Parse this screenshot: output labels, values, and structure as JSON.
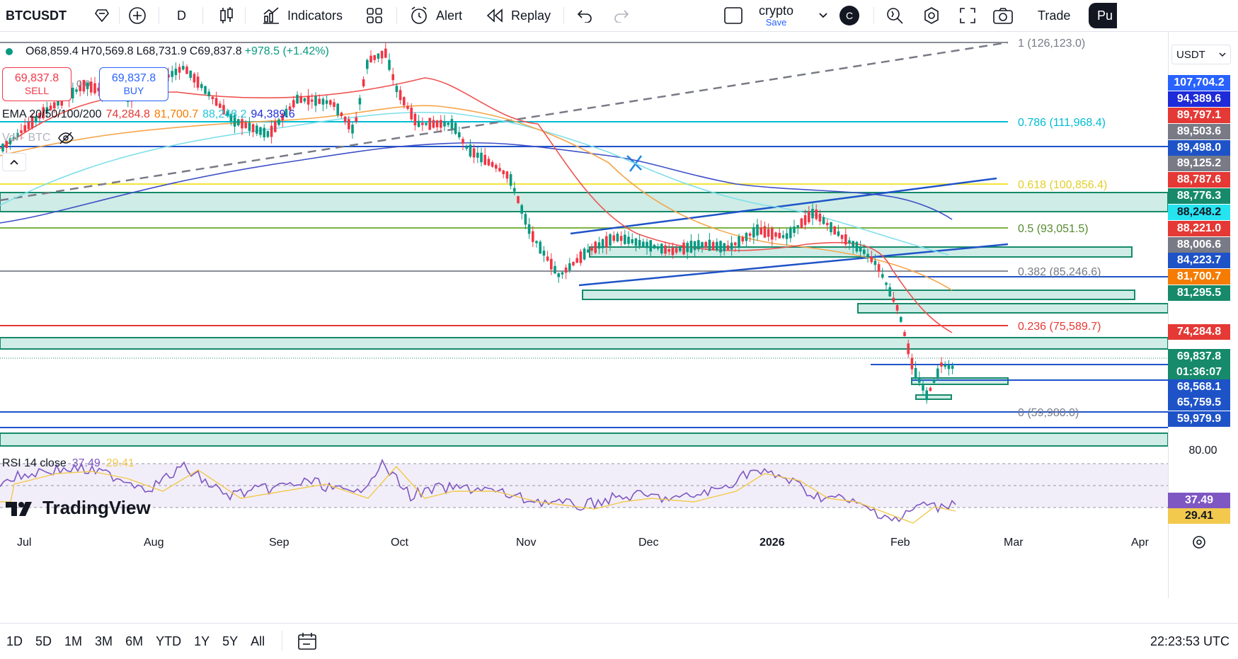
{
  "toolbar": {
    "symbol": "BTCUSDT",
    "interval": "D",
    "indicators_label": "Indicators",
    "alert_label": "Alert",
    "replay_label": "Replay",
    "layout_name": "crypto",
    "layout_sub": "Save",
    "avatar_letter": "C",
    "trade_label": "Trade",
    "publish_label": "Pu"
  },
  "ohlc": {
    "o": "O68,859.4",
    "h": "H70,569.8",
    "l": "L68,731.9",
    "c": "C69,837.8",
    "chg": "+978.5 (+1.42%)"
  },
  "trade_buttons": {
    "sell_price": "69,837.8",
    "sell_label": "SELL",
    "spread": "0.0",
    "buy_price": "69,837.8",
    "buy_label": "BUY"
  },
  "ema_legend": {
    "label": "EMA 20/50/100/200",
    "v1": "74,284.8",
    "v2": "81,700.7",
    "v3": "88,248.2",
    "v4": "94,389.6"
  },
  "vol_legend": "Vol · BTC",
  "rsi_legend": {
    "label": "RSI 14 close",
    "v1": "37.49",
    "v2": "29.41"
  },
  "currency": "USDT",
  "fib_labels": [
    "1 (126,123.0)",
    "0.786 (111,968.4)",
    "0.618 (100,856.4)",
    "0.5 (93,051.5)",
    "0.382 (85,246.6)",
    "0.236 (75,589.7)",
    "0 (59,980.0)"
  ],
  "price_labels": [
    {
      "text": "107,704.2",
      "bg": "#2962ff"
    },
    {
      "text": "94,389.6",
      "bg": "#1e2bd9"
    },
    {
      "text": "89,797.1",
      "bg": "#e53935"
    },
    {
      "text": "89,503.6",
      "bg": "#787b86"
    },
    {
      "text": "89,498.0",
      "bg": "#1e53c8"
    },
    {
      "text": "89,125.2",
      "bg": "#787b86"
    },
    {
      "text": "88,787.6",
      "bg": "#e53935"
    },
    {
      "text": "88,776.3",
      "bg": "#168a6a"
    },
    {
      "text": "88,248.2",
      "bg": "#26e3f0"
    },
    {
      "text": "88,221.0",
      "bg": "#e53935"
    },
    {
      "text": "88,006.6",
      "bg": "#787b86"
    },
    {
      "text": "84,223.7",
      "bg": "#1e53c8"
    },
    {
      "text": "81,700.7",
      "bg": "#f57c00"
    },
    {
      "text": "81,295.5",
      "bg": "#168a6a"
    },
    {
      "text": "74,284.8",
      "bg": "#e53935"
    },
    {
      "text": "69,837.8",
      "bg": "#168a6a"
    },
    {
      "text": "01:36:07",
      "bg": "#168a6a"
    },
    {
      "text": "68,568.1",
      "bg": "#1e53c8"
    },
    {
      "text": "65,759.5",
      "bg": "#1e53c8"
    },
    {
      "text": "59,979.9",
      "bg": "#1e53c8"
    }
  ],
  "rsi_axis": {
    "top": "80.00",
    "v1": "37.49",
    "v2": "29.41"
  },
  "time_labels": [
    "Jul",
    "Aug",
    "Sep",
    "Oct",
    "Nov",
    "Dec",
    "2026",
    "Feb",
    "Mar",
    "Apr"
  ],
  "ranges": [
    "1D",
    "5D",
    "1M",
    "3M",
    "6M",
    "YTD",
    "1Y",
    "5Y",
    "All"
  ],
  "clock": "22:23:53 UTC",
  "watermark": "TradingView",
  "colors": {
    "up": "#089981",
    "down": "#f23645",
    "fib_786": "#00bcd4",
    "fib_618": "#ffeb3b",
    "zone": "#b2dfdb"
  }
}
